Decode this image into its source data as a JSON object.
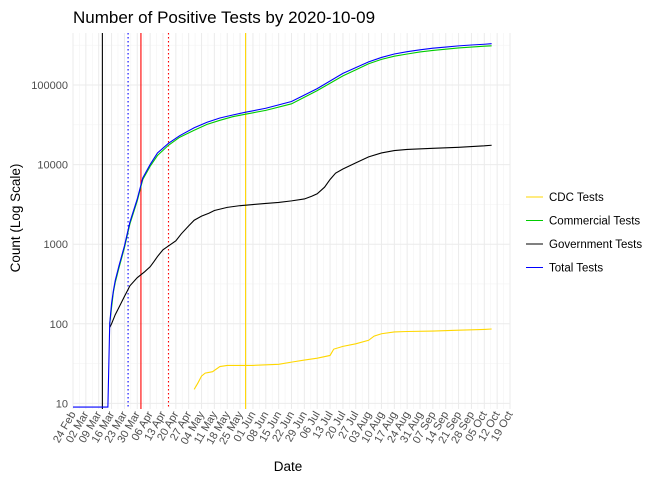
{
  "chart_data": {
    "type": "line",
    "title": "Number of Positive Tests by  2020-10-09",
    "xlabel": "Date",
    "ylabel": "Count (Log Scale)",
    "y_scale": "log10",
    "ylim": [
      8.5,
      450000
    ],
    "y_ticks": [
      10,
      100,
      1000,
      10000,
      100000
    ],
    "y_tick_labels": [
      "10",
      "100",
      "1000",
      "10000",
      "100000"
    ],
    "xlim": [
      "2020-02-24",
      "2020-10-19"
    ],
    "x_ticks": [
      "2020-02-24",
      "2020-03-02",
      "2020-03-09",
      "2020-03-16",
      "2020-03-23",
      "2020-03-30",
      "2020-04-06",
      "2020-04-13",
      "2020-04-20",
      "2020-04-27",
      "2020-05-04",
      "2020-05-11",
      "2020-05-18",
      "2020-05-25",
      "2020-06-01",
      "2020-06-08",
      "2020-06-15",
      "2020-06-22",
      "2020-06-29",
      "2020-07-06",
      "2020-07-13",
      "2020-07-20",
      "2020-07-27",
      "2020-08-03",
      "2020-08-10",
      "2020-08-17",
      "2020-08-24",
      "2020-08-31",
      "2020-09-07",
      "2020-09-14",
      "2020-09-21",
      "2020-09-28",
      "2020-10-05",
      "2020-10-12",
      "2020-10-19"
    ],
    "x_tick_labels": [
      "24 Feb",
      "02 Mar",
      "09 Mar",
      "16 Mar",
      "23 Mar",
      "30 Mar",
      "06 Apr",
      "13 Apr",
      "20 Apr",
      "27 Apr",
      "04 May",
      "11 May",
      "18 May",
      "25 May",
      "01 Jun",
      "08 Jun",
      "15 Jun",
      "22 Jun",
      "29 Jun",
      "06 Jul",
      "13 Jul",
      "20 Jul",
      "27 Jul",
      "03 Aug",
      "10 Aug",
      "17 Aug",
      "24 Aug",
      "31 Aug",
      "07 Sep",
      "14 Sep",
      "21 Sep",
      "28 Sep",
      "05 Oct",
      "12 Oct",
      "19 Oct"
    ],
    "grid": true,
    "legend_position": "right",
    "vlines": [
      {
        "x": "2020-03-11",
        "color": "#000000",
        "style": "solid"
      },
      {
        "x": "2020-03-25",
        "color": "#0000ff",
        "style": "dotted"
      },
      {
        "x": "2020-04-01",
        "color": "#ff0000",
        "style": "solid"
      },
      {
        "x": "2020-04-16",
        "color": "#ff0000",
        "style": "dotted"
      },
      {
        "x": "2020-05-28",
        "color": "#ffd700",
        "style": "solid"
      }
    ],
    "series": [
      {
        "name": "CDC Tests",
        "color": "#ffd700",
        "points": [
          [
            "2020-04-30",
            15
          ],
          [
            "2020-05-02",
            18
          ],
          [
            "2020-05-04",
            22
          ],
          [
            "2020-05-06",
            24
          ],
          [
            "2020-05-10",
            25
          ],
          [
            "2020-05-14",
            29
          ],
          [
            "2020-05-18",
            30
          ],
          [
            "2020-06-01",
            30
          ],
          [
            "2020-06-15",
            31
          ],
          [
            "2020-06-22",
            33
          ],
          [
            "2020-06-29",
            35
          ],
          [
            "2020-07-06",
            37
          ],
          [
            "2020-07-13",
            40
          ],
          [
            "2020-07-15",
            48
          ],
          [
            "2020-07-20",
            52
          ],
          [
            "2020-07-27",
            56
          ],
          [
            "2020-08-03",
            62
          ],
          [
            "2020-08-06",
            70
          ],
          [
            "2020-08-10",
            75
          ],
          [
            "2020-08-17",
            79
          ],
          [
            "2020-08-24",
            80
          ],
          [
            "2020-09-07",
            81
          ],
          [
            "2020-09-21",
            83
          ],
          [
            "2020-10-05",
            85
          ],
          [
            "2020-10-09",
            86
          ]
        ]
      },
      {
        "name": "Commercial Tests",
        "color": "#00cc00",
        "points": [
          [
            "2020-03-15",
            100
          ],
          [
            "2020-03-16",
            160
          ],
          [
            "2020-03-17",
            250
          ],
          [
            "2020-03-18",
            330
          ],
          [
            "2020-03-20",
            500
          ],
          [
            "2020-03-23",
            900
          ],
          [
            "2020-03-26",
            1800
          ],
          [
            "2020-03-30",
            3500
          ],
          [
            "2020-04-02",
            6500
          ],
          [
            "2020-04-06",
            9500
          ],
          [
            "2020-04-10",
            13000
          ],
          [
            "2020-04-16",
            17500
          ],
          [
            "2020-04-22",
            22000
          ],
          [
            "2020-04-30",
            27000
          ],
          [
            "2020-05-07",
            32000
          ],
          [
            "2020-05-14",
            36000
          ],
          [
            "2020-05-21",
            40000
          ],
          [
            "2020-05-28",
            43000
          ],
          [
            "2020-06-08",
            48000
          ],
          [
            "2020-06-22",
            58000
          ],
          [
            "2020-07-06",
            85000
          ],
          [
            "2020-07-20",
            130000
          ],
          [
            "2020-07-27",
            155000
          ],
          [
            "2020-08-03",
            185000
          ],
          [
            "2020-08-10",
            210000
          ],
          [
            "2020-08-17",
            230000
          ],
          [
            "2020-08-24",
            245000
          ],
          [
            "2020-08-31",
            260000
          ],
          [
            "2020-09-07",
            272000
          ],
          [
            "2020-09-14",
            282000
          ],
          [
            "2020-09-21",
            292000
          ],
          [
            "2020-09-28",
            300000
          ],
          [
            "2020-10-05",
            307000
          ],
          [
            "2020-10-09",
            311000
          ]
        ]
      },
      {
        "name": "Government Tests",
        "color": "#000000",
        "points": [
          [
            "2020-03-15",
            90
          ],
          [
            "2020-03-16",
            100
          ],
          [
            "2020-03-18",
            130
          ],
          [
            "2020-03-20",
            160
          ],
          [
            "2020-03-23",
            220
          ],
          [
            "2020-03-26",
            300
          ],
          [
            "2020-03-30",
            380
          ],
          [
            "2020-04-03",
            450
          ],
          [
            "2020-04-06",
            520
          ],
          [
            "2020-04-08",
            600
          ],
          [
            "2020-04-10",
            700
          ],
          [
            "2020-04-13",
            850
          ],
          [
            "2020-04-16",
            950
          ],
          [
            "2020-04-20",
            1100
          ],
          [
            "2020-04-23",
            1350
          ],
          [
            "2020-04-27",
            1700
          ],
          [
            "2020-04-30",
            2000
          ],
          [
            "2020-05-04",
            2250
          ],
          [
            "2020-05-08",
            2450
          ],
          [
            "2020-05-11",
            2650
          ],
          [
            "2020-05-18",
            2900
          ],
          [
            "2020-05-25",
            3050
          ],
          [
            "2020-06-01",
            3150
          ],
          [
            "2020-06-08",
            3250
          ],
          [
            "2020-06-15",
            3350
          ],
          [
            "2020-06-22",
            3500
          ],
          [
            "2020-06-29",
            3700
          ],
          [
            "2020-07-03",
            4000
          ],
          [
            "2020-07-06",
            4300
          ],
          [
            "2020-07-10",
            5200
          ],
          [
            "2020-07-13",
            6500
          ],
          [
            "2020-07-16",
            7800
          ],
          [
            "2020-07-20",
            8800
          ],
          [
            "2020-07-27",
            10500
          ],
          [
            "2020-08-03",
            12500
          ],
          [
            "2020-08-10",
            14000
          ],
          [
            "2020-08-17",
            15000
          ],
          [
            "2020-08-24",
            15500
          ],
          [
            "2020-09-07",
            16000
          ],
          [
            "2020-09-21",
            16500
          ],
          [
            "2020-10-05",
            17200
          ],
          [
            "2020-10-09",
            17500
          ]
        ]
      },
      {
        "name": "Total Tests",
        "color": "#0000ff",
        "points": [
          [
            "2020-02-24",
            9
          ],
          [
            "2020-03-13",
            9
          ],
          [
            "2020-03-14",
            9
          ],
          [
            "2020-03-15",
            100
          ],
          [
            "2020-03-16",
            180
          ],
          [
            "2020-03-17",
            260
          ],
          [
            "2020-03-18",
            350
          ],
          [
            "2020-03-20",
            530
          ],
          [
            "2020-03-23",
            950
          ],
          [
            "2020-03-26",
            1900
          ],
          [
            "2020-03-30",
            3700
          ],
          [
            "2020-04-02",
            6800
          ],
          [
            "2020-04-06",
            10000
          ],
          [
            "2020-04-10",
            14000
          ],
          [
            "2020-04-16",
            18500
          ],
          [
            "2020-04-22",
            23000
          ],
          [
            "2020-04-30",
            29000
          ],
          [
            "2020-05-07",
            34000
          ],
          [
            "2020-05-14",
            38500
          ],
          [
            "2020-05-21",
            42000
          ],
          [
            "2020-05-28",
            45500
          ],
          [
            "2020-06-08",
            51000
          ],
          [
            "2020-06-22",
            62000
          ],
          [
            "2020-07-06",
            90000
          ],
          [
            "2020-07-20",
            140000
          ],
          [
            "2020-07-27",
            165000
          ],
          [
            "2020-08-03",
            195000
          ],
          [
            "2020-08-10",
            222000
          ],
          [
            "2020-08-17",
            245000
          ],
          [
            "2020-08-24",
            262000
          ],
          [
            "2020-08-31",
            277000
          ],
          [
            "2020-09-07",
            290000
          ],
          [
            "2020-09-14",
            300000
          ],
          [
            "2020-09-21",
            310000
          ],
          [
            "2020-09-28",
            318000
          ],
          [
            "2020-10-05",
            325000
          ],
          [
            "2020-10-09",
            330000
          ]
        ]
      }
    ]
  }
}
